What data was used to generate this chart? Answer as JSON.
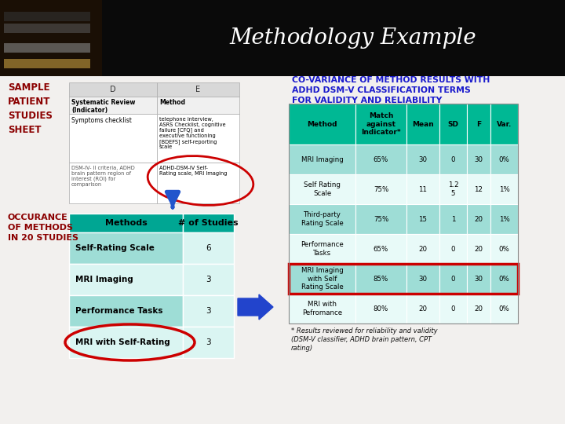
{
  "title": "Methodology Example",
  "left_label": "SAMPLE\nPATIENT\nSTUDIES\nSHEET",
  "left_label_color": "#8b0000",
  "left_label2": "OCCURANCE\nOF METHODS\nIN 20 STUDIES",
  "left_label2_color": "#8b0000",
  "covariance_title_line1": "CO-VARIANCE OF METHOD RESULTS WITH",
  "covariance_title_line2": "ADHD DSM-V CLASSIFICATION TERMS",
  "covariance_title_line3": "FOR VALIDITY AND RELIABILITY",
  "covariance_title_color": "#1a1acc",
  "cov_headers": [
    "Method",
    "Match\nagainst\nIndicator*",
    "Mean",
    "SD",
    "F",
    "Var."
  ],
  "cov_rows": [
    [
      "MRI Imaging",
      "65%",
      "30",
      "0",
      "30",
      "0%"
    ],
    [
      "Self Rating\nScale",
      "75%",
      "11",
      "1.2\n5",
      "12",
      "1%"
    ],
    [
      "Third-party\nRating Scale",
      "75%",
      "15",
      "1",
      "20",
      "1%"
    ],
    [
      "Performance\nTasks",
      "65%",
      "20",
      "0",
      "20",
      "0%"
    ],
    [
      "MRI Imaging\nwith Self\nRating Scale",
      "85%",
      "30",
      "0",
      "30",
      "0%"
    ],
    [
      "MRI with\nPefromance",
      "80%",
      "20",
      "0",
      "20",
      "0%"
    ]
  ],
  "cov_highlighted_row": 4,
  "methods_table_rows": [
    [
      "Self-Rating Scale",
      "6"
    ],
    [
      "MRI Imaging",
      "3"
    ],
    [
      "Performance Tasks",
      "3"
    ],
    [
      "MRI with Self-Rating",
      "3"
    ]
  ],
  "footnote": "* Results reviewed for reliability and validity\n(DSM-V classifier, ADHD brain pattern, CPT\nrating)",
  "teal_header": "#00a693",
  "teal_cell_light": "#9eddd6",
  "teal_cell_white": "#daf5f2",
  "cov_header_color": "#00b894",
  "cov_row_teal": "#9eddd6",
  "cov_row_white": "#e8faf8"
}
